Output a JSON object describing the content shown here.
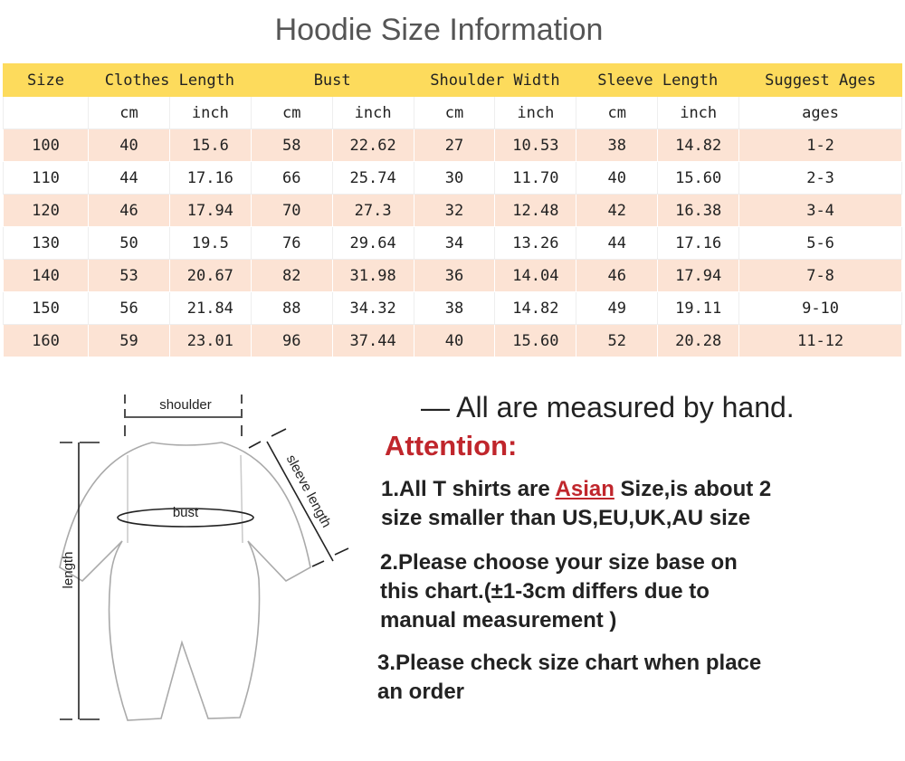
{
  "title": "Hoodie Size Information",
  "table": {
    "headers": [
      "Size",
      "Clothes Length",
      "Bust",
      "Shoulder Width",
      "Sleeve Length",
      "Suggest Ages"
    ],
    "units": [
      "",
      "cm",
      "inch",
      "cm",
      "inch",
      "cm",
      "inch",
      "cm",
      "inch",
      "ages"
    ],
    "rows": [
      [
        "100",
        "40",
        "15.6",
        "58",
        "22.62",
        "27",
        "10.53",
        "38",
        "14.82",
        "1-2"
      ],
      [
        "110",
        "44",
        "17.16",
        "66",
        "25.74",
        "30",
        "11.70",
        "40",
        "15.60",
        "2-3"
      ],
      [
        "120",
        "46",
        "17.94",
        "70",
        "27.3",
        "32",
        "12.48",
        "42",
        "16.38",
        "3-4"
      ],
      [
        "130",
        "50",
        "19.5",
        "76",
        "29.64",
        "34",
        "13.26",
        "44",
        "17.16",
        "5-6"
      ],
      [
        "140",
        "53",
        "20.67",
        "82",
        "31.98",
        "36",
        "14.04",
        "46",
        "17.94",
        "7-8"
      ],
      [
        "150",
        "56",
        "21.84",
        "88",
        "34.32",
        "38",
        "14.82",
        "49",
        "19.11",
        "9-10"
      ],
      [
        "160",
        "59",
        "23.01",
        "96",
        "37.44",
        "40",
        "15.60",
        "52",
        "20.28",
        "11-12"
      ]
    ],
    "colors": {
      "header": "#fddb5c",
      "alt_row": "#fce3d4"
    }
  },
  "diagram": {
    "labels": {
      "shoulder": "shoulder",
      "bust": "bust",
      "length": "length",
      "sleeve": "sleeve length"
    }
  },
  "notes": {
    "measured": "— All are measured by hand.",
    "attention": "Attention:",
    "item1_a": "1.All T shirts are ",
    "item1_asian": "Asian",
    "item1_b": " Size,is about 2",
    "item1_c": "size smaller than US,EU,UK,AU size",
    "item2_a": "2.Please choose your size base on",
    "item2_b": "this chart.(±1-3cm differs due to",
    "item2_c": "manual measurement )",
    "item3_a": "3.Please check size chart when place",
    "item3_b": "an order",
    "accent": "#c0262c"
  }
}
